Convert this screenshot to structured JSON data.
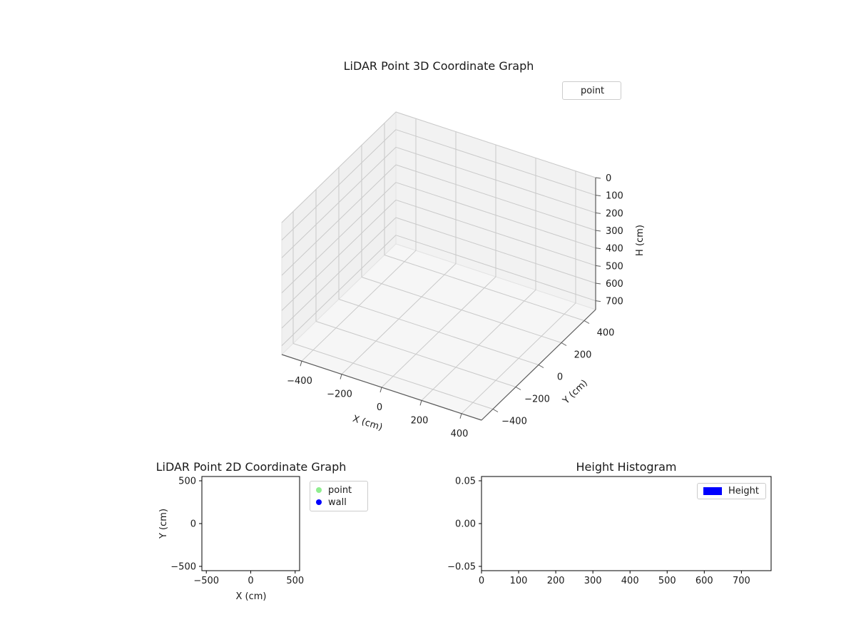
{
  "figure": {
    "background": "#ffffff",
    "grid_color": "#c9c9c9",
    "spine_color": "#5a5a5a"
  },
  "plot3d": {
    "title": "LiDAR Point 3D Coordinate Graph",
    "xlabel": "X (cm)",
    "ylabel": "Y (cm)",
    "zlabel": "H (cm)",
    "xtick_labels": [
      "−400",
      "−200",
      "0",
      "200",
      "400"
    ],
    "ytick_labels": [
      "−400",
      "−200",
      "0",
      "200",
      "400"
    ],
    "ztick_labels": [
      "0",
      "100",
      "200",
      "300",
      "400",
      "500",
      "600",
      "700"
    ],
    "legend": {
      "items": [
        {
          "label": "point",
          "color": "none"
        }
      ]
    }
  },
  "plot2d": {
    "title": "LiDAR Point 2D Coordinate Graph",
    "xlabel": "X (cm)",
    "ylabel": "Y (cm)",
    "xtick_labels": [
      "−500",
      "0",
      "500"
    ],
    "ytick_labels": [
      "−500",
      "0",
      "500"
    ],
    "legend": {
      "items": [
        {
          "label": "point",
          "color": "#90ee90"
        },
        {
          "label": "wall",
          "color": "#0000ff"
        }
      ]
    }
  },
  "hist": {
    "title": "Height Histogram",
    "xtick_labels": [
      "0",
      "100",
      "200",
      "300",
      "400",
      "500",
      "600",
      "700"
    ],
    "ytick_labels": [
      "−0.05",
      "0.00",
      "0.05"
    ],
    "legend": {
      "items": [
        {
          "label": "Height",
          "color": "#0000ff"
        }
      ]
    }
  },
  "chart_data": [
    {
      "type": "scatter",
      "projection": "3d",
      "title": "LiDAR Point 3D Coordinate Graph",
      "xlabel": "X (cm)",
      "ylabel": "Y (cm)",
      "zlabel": "H (cm)",
      "xlim": [
        -500,
        500
      ],
      "ylim": [
        -500,
        500
      ],
      "zlim": [
        0,
        750
      ],
      "zaxis_inverted": true,
      "xticks": [
        -400,
        -200,
        0,
        200,
        400
      ],
      "yticks": [
        -400,
        -200,
        0,
        200,
        400
      ],
      "zticks": [
        0,
        100,
        200,
        300,
        400,
        500,
        600,
        700
      ],
      "grid": true,
      "legend": {
        "position": "upper right",
        "entries": [
          "point"
        ]
      },
      "series": [
        {
          "name": "point",
          "points": []
        }
      ]
    },
    {
      "type": "scatter",
      "title": "LiDAR Point 2D Coordinate Graph",
      "xlabel": "X (cm)",
      "ylabel": "Y (cm)",
      "xlim": [
        -550,
        550
      ],
      "ylim": [
        -550,
        550
      ],
      "xticks": [
        -500,
        0,
        500
      ],
      "yticks": [
        -500,
        0,
        500
      ],
      "grid": false,
      "legend": {
        "position": "upper right outside",
        "entries": [
          {
            "name": "point",
            "color": "#90ee90"
          },
          {
            "name": "wall",
            "color": "#0000ff"
          }
        ]
      },
      "series": [
        {
          "name": "point",
          "color": "#90ee90",
          "points": []
        },
        {
          "name": "wall",
          "color": "#0000ff",
          "points": []
        }
      ]
    },
    {
      "type": "bar",
      "title": "Height Histogram",
      "xlabel": "",
      "ylabel": "",
      "xlim": [
        0,
        780
      ],
      "ylim": [
        -0.055,
        0.055
      ],
      "xticks": [
        0,
        100,
        200,
        300,
        400,
        500,
        600,
        700
      ],
      "yticks": [
        -0.05,
        0,
        0.05
      ],
      "grid": false,
      "legend": {
        "position": "upper right",
        "entries": [
          {
            "name": "Height",
            "color": "#0000ff"
          }
        ]
      },
      "series": [
        {
          "name": "Height",
          "color": "#0000ff",
          "values": []
        }
      ]
    }
  ]
}
